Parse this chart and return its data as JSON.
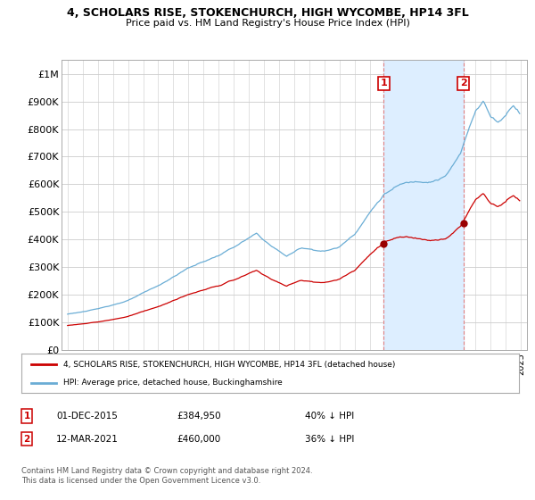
{
  "title": "4, SCHOLARS RISE, STOKENCHURCH, HIGH WYCOMBE, HP14 3FL",
  "subtitle": "Price paid vs. HM Land Registry's House Price Index (HPI)",
  "background_color": "#ffffff",
  "plot_bg_color": "#ffffff",
  "legend_line1": "4, SCHOLARS RISE, STOKENCHURCH, HIGH WYCOMBE, HP14 3FL (detached house)",
  "legend_line2": "HPI: Average price, detached house, Buckinghamshire",
  "annotation1": {
    "num": "1",
    "date": "01-DEC-2015",
    "price": "£384,950",
    "pct": "40% ↓ HPI"
  },
  "annotation2": {
    "num": "2",
    "date": "12-MAR-2021",
    "price": "£460,000",
    "pct": "36% ↓ HPI"
  },
  "footnote": "Contains HM Land Registry data © Crown copyright and database right 2024.\nThis data is licensed under the Open Government Licence v3.0.",
  "sale1_year": 2015.917,
  "sale1_price": 384950,
  "sale2_year": 2021.19,
  "sale2_price": 460000,
  "hpi_color": "#6aadd5",
  "price_color": "#cc0000",
  "marker_color": "#990000",
  "vline_color": "#e08080",
  "span_color": "#ddeeff",
  "ylim_max": 1050000,
  "ylim_min": 0,
  "yticks": [
    0,
    100000,
    200000,
    300000,
    400000,
    500000,
    600000,
    700000,
    800000,
    900000,
    1000000
  ],
  "ytick_labels": [
    "£0",
    "£100K",
    "£200K",
    "£300K",
    "£400K",
    "£500K",
    "£600K",
    "£700K",
    "£800K",
    "£900K",
    "£1M"
  ]
}
